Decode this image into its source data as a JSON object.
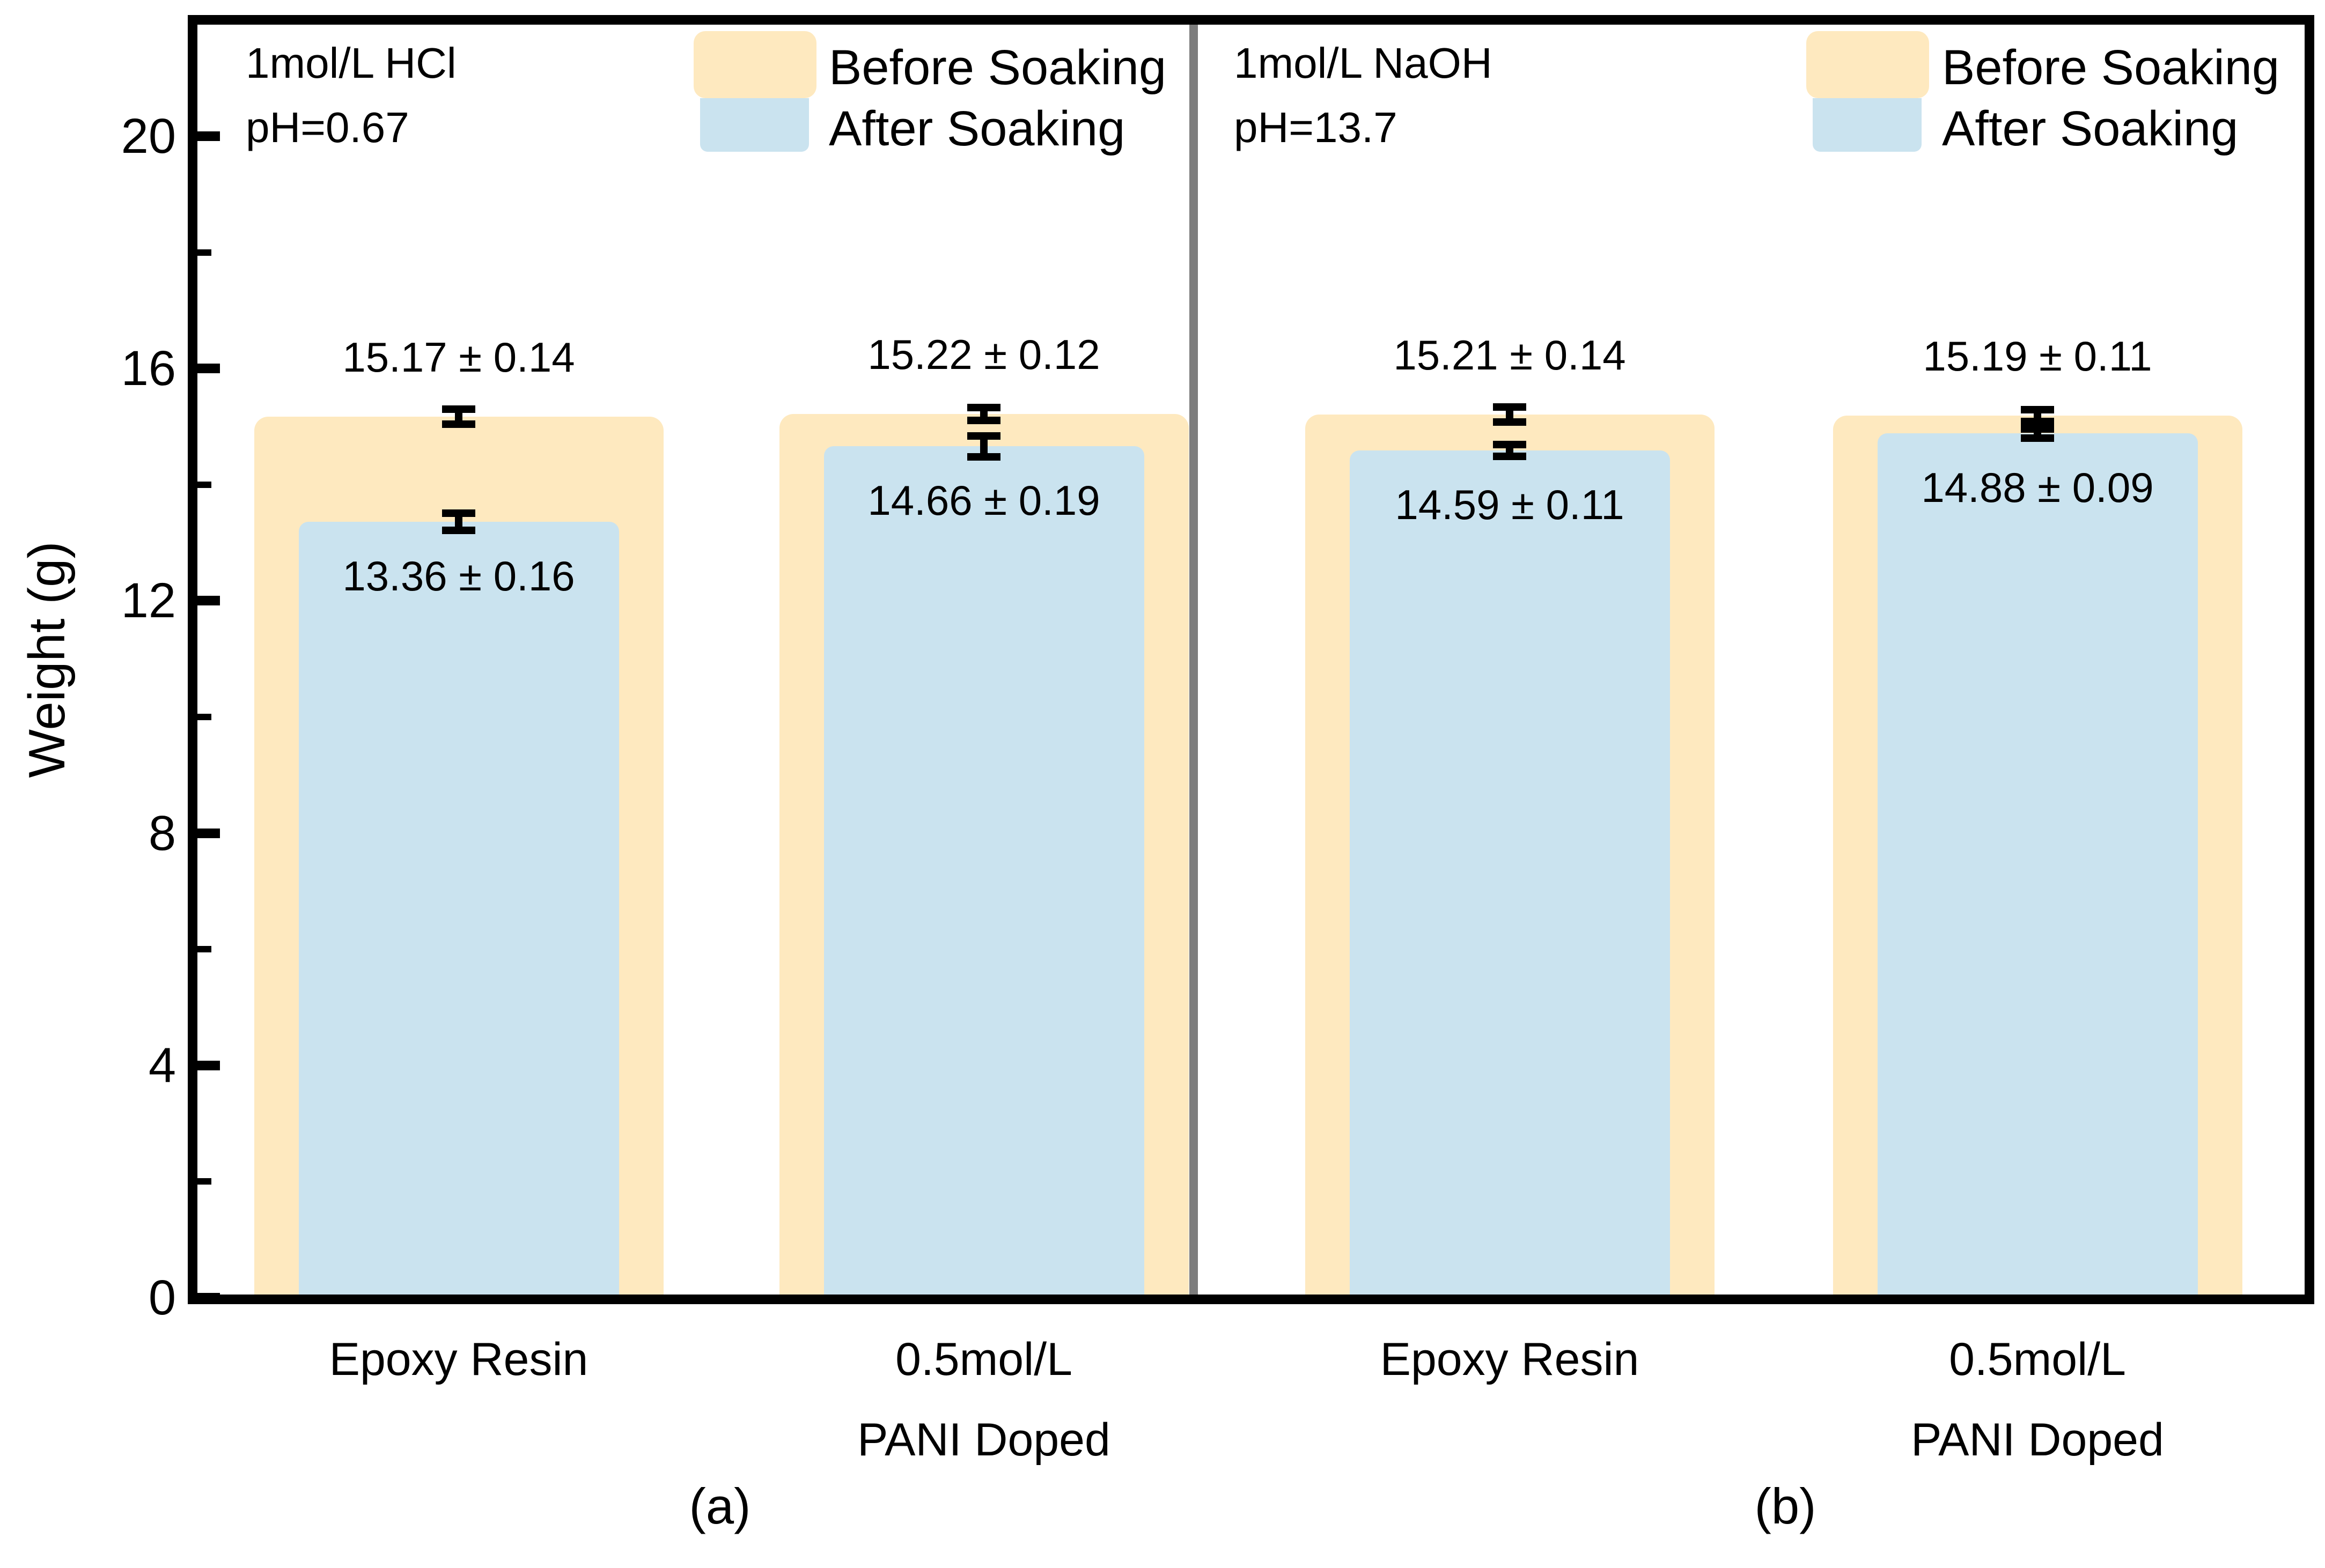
{
  "chart_data": {
    "type": "bar",
    "title": "",
    "ylabel": "Weight (g)",
    "ylim": [
      0,
      22
    ],
    "yticks_major": [
      0,
      4,
      8,
      12,
      16,
      20
    ],
    "ytick_labels": [
      "0",
      "4",
      "8",
      "12",
      "16",
      "20"
    ],
    "yticks_minor": [
      2,
      6,
      10,
      14,
      18
    ],
    "grid": "off",
    "legend_position": "top of each panel",
    "legend": {
      "before_label": "Before Soaking",
      "after_label": "After Soaking"
    },
    "colors": {
      "before": "#FEE9BF",
      "after": "#CAE3EF",
      "frame": "#000000",
      "divider": "#7d7d7d"
    },
    "panels": [
      {
        "label": "(a)",
        "condition": "1mol/L HCl",
        "ph": "pH=0.67",
        "groups": [
          {
            "category_lines": [
              "Epoxy Resin"
            ],
            "before": 15.17,
            "before_err": 0.14,
            "after": 13.36,
            "after_err": 0.16,
            "before_text": "15.17 ± 0.14",
            "after_text": "13.36 ± 0.16"
          },
          {
            "category_lines": [
              "0.5mol/L",
              "PANI Doped"
            ],
            "before": 15.22,
            "before_err": 0.12,
            "after": 14.66,
            "after_err": 0.19,
            "before_text": "15.22 ± 0.12",
            "after_text": "14.66 ± 0.19"
          }
        ]
      },
      {
        "label": "(b)",
        "condition": "1mol/L NaOH",
        "ph": "pH=13.7",
        "groups": [
          {
            "category_lines": [
              "Epoxy Resin"
            ],
            "before": 15.21,
            "before_err": 0.14,
            "after": 14.59,
            "after_err": 0.11,
            "before_text": "15.21 ± 0.14",
            "after_text": "14.59 ± 0.11"
          },
          {
            "category_lines": [
              "0.5mol/L",
              "PANI Doped"
            ],
            "before": 15.19,
            "before_err": 0.11,
            "after": 14.88,
            "after_err": 0.09,
            "before_text": "15.19 ± 0.11",
            "after_text": "14.88 ± 0.09"
          }
        ]
      }
    ]
  }
}
